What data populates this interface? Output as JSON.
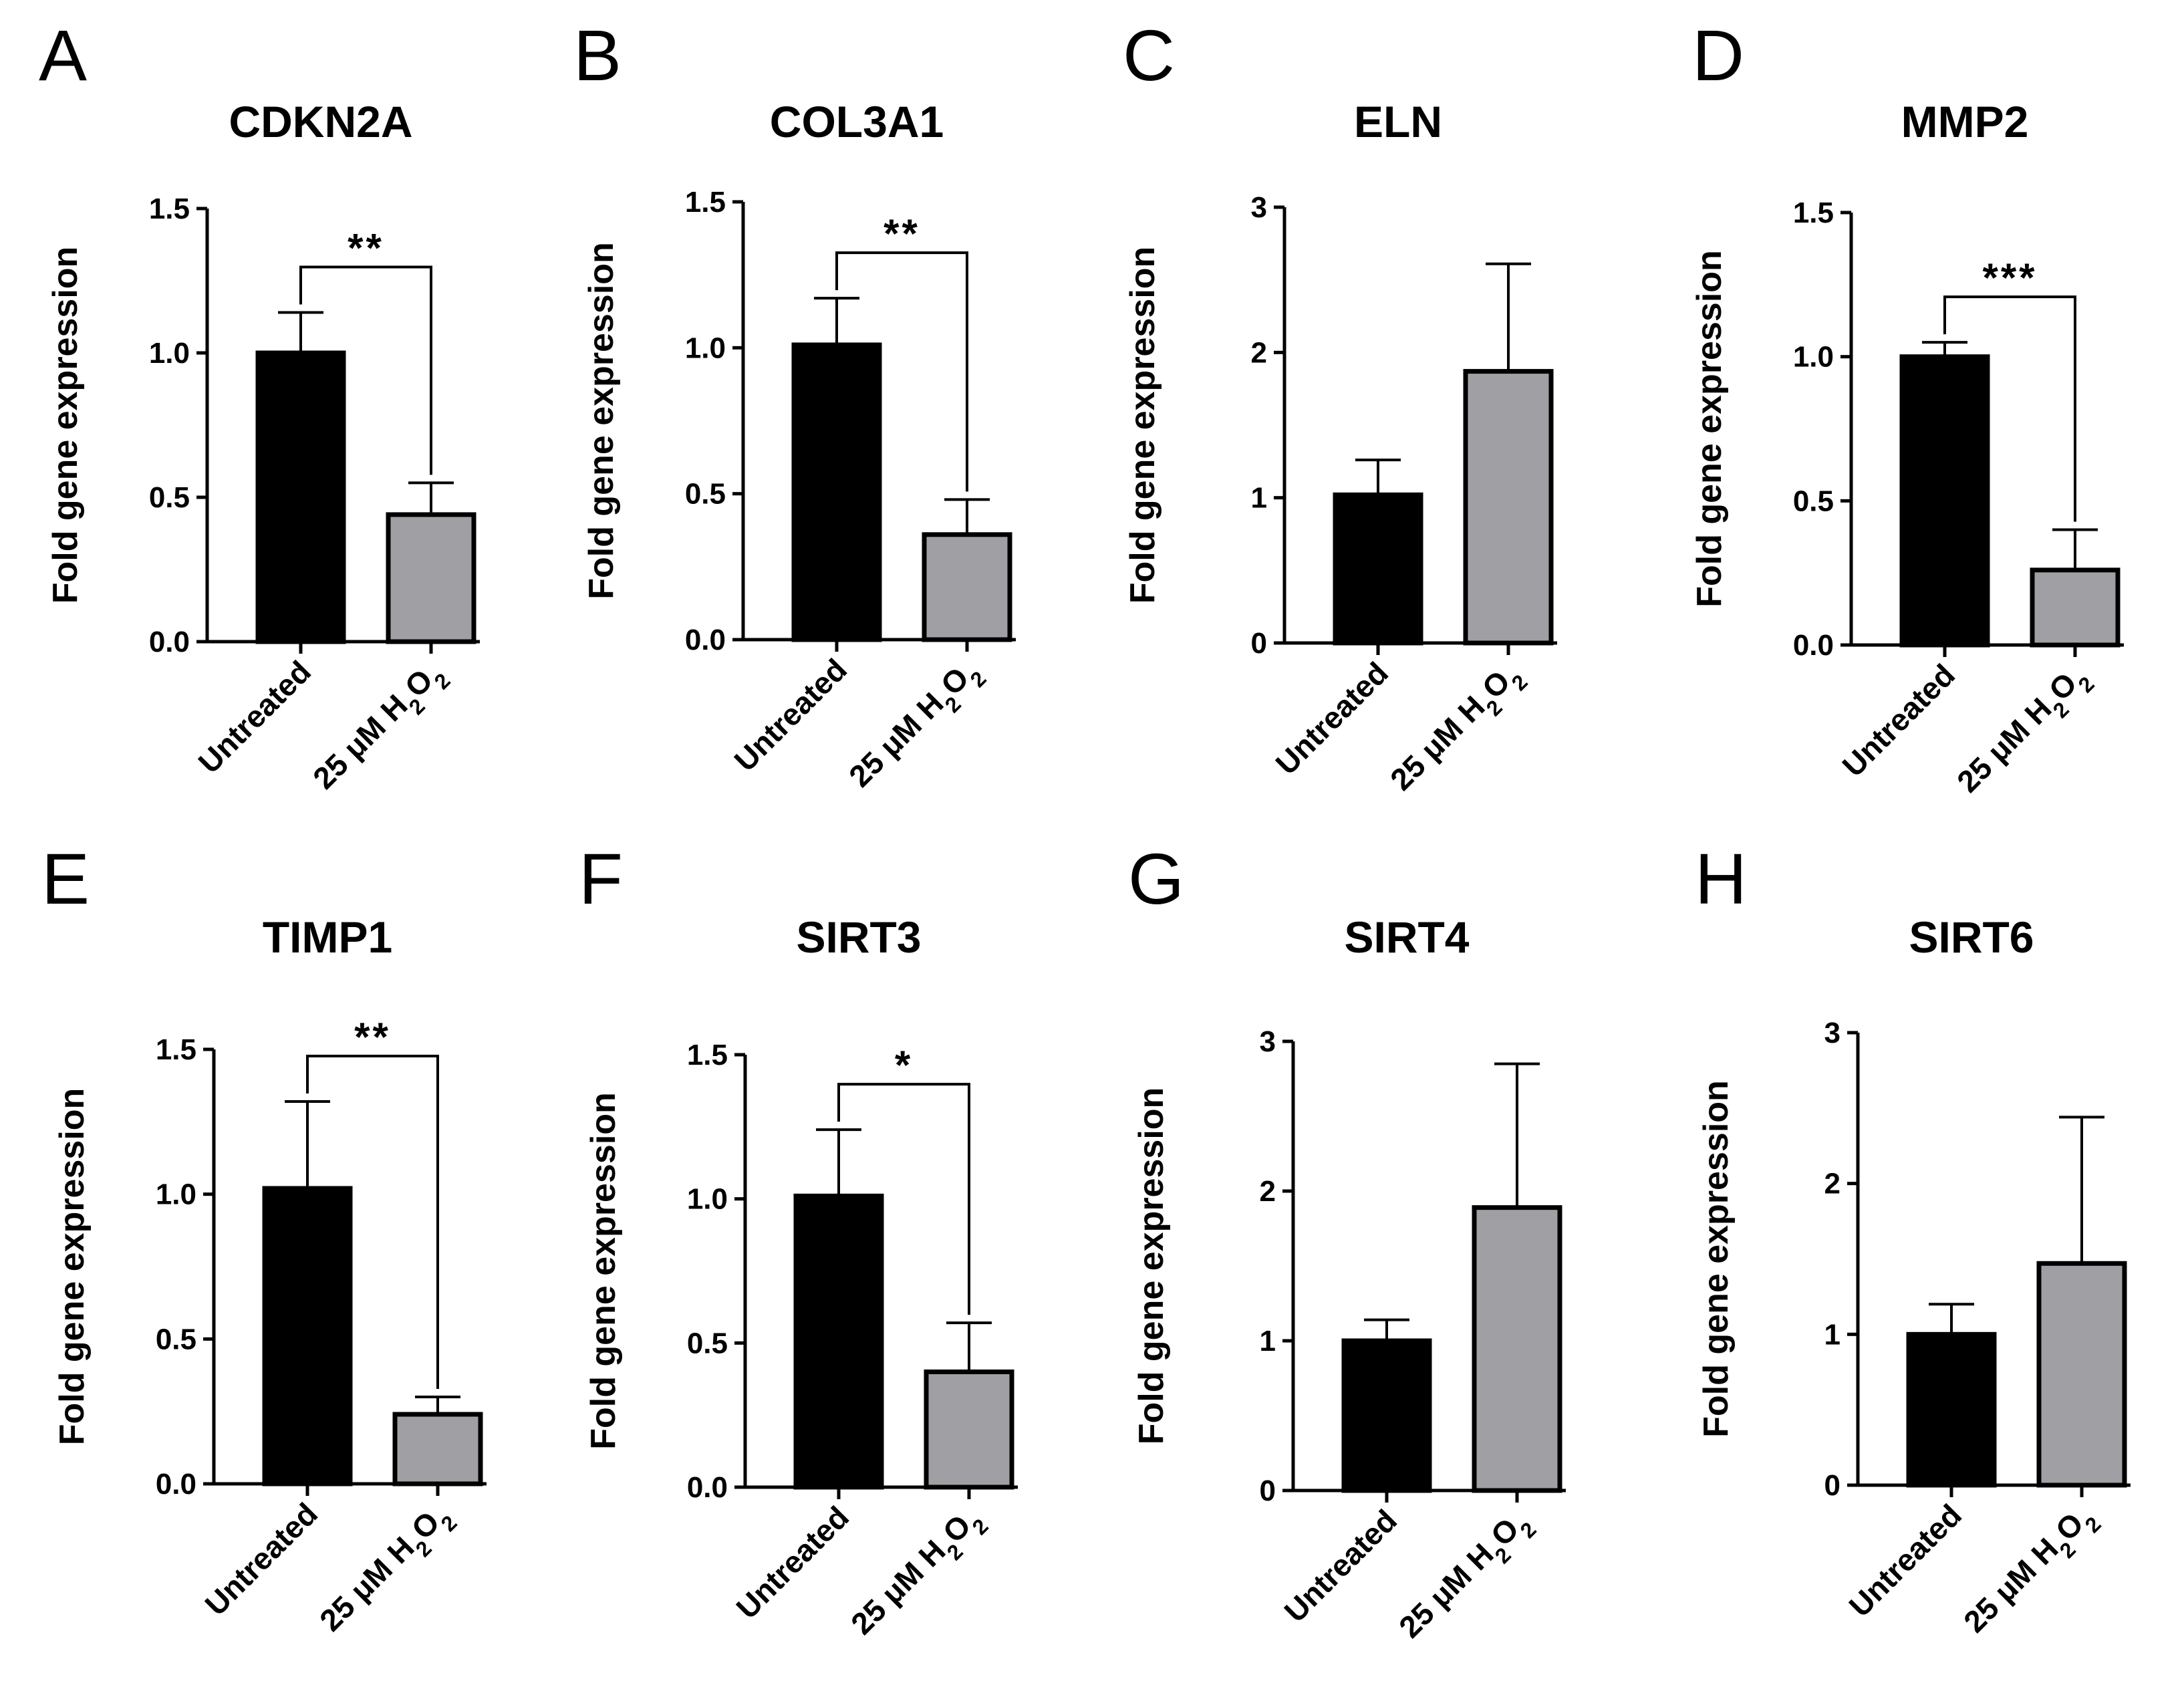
{
  "figure": {
    "layout": "2 rows x 4 panels",
    "background": "#ffffff"
  },
  "chart_data": [
    {
      "letter": "A",
      "type": "bar",
      "title": "CDKN2A",
      "ylabel": "Fold gene expression",
      "categories": [
        "Untreated",
        "25 μM H2O2"
      ],
      "values": [
        1.0,
        0.44
      ],
      "errors": [
        0.14,
        0.11
      ],
      "colors": [
        "#000000",
        "#a0a0a4"
      ],
      "ylim": [
        0,
        1.5
      ],
      "yticks": [
        "0.0",
        "0.5",
        "1.0",
        "1.5"
      ],
      "significance": "**"
    },
    {
      "letter": "B",
      "type": "bar",
      "title": "COL3A1",
      "ylabel": "Fold gene expression",
      "categories": [
        "Untreated",
        "25 μM H2O2"
      ],
      "values": [
        1.01,
        0.36
      ],
      "errors": [
        0.16,
        0.12
      ],
      "colors": [
        "#000000",
        "#a0a0a4"
      ],
      "ylim": [
        0,
        1.5
      ],
      "yticks": [
        "0.0",
        "0.5",
        "1.0",
        "1.5"
      ],
      "significance": "**"
    },
    {
      "letter": "C",
      "type": "bar",
      "title": "ELN",
      "ylabel": "Fold gene expression",
      "categories": [
        "Untreated",
        "25 μM H2O2"
      ],
      "values": [
        1.02,
        1.87
      ],
      "errors": [
        0.24,
        0.74
      ],
      "colors": [
        "#000000",
        "#a0a0a4"
      ],
      "ylim": [
        0,
        3
      ],
      "yticks": [
        "0",
        "1",
        "2",
        "3"
      ],
      "significance": ""
    },
    {
      "letter": "D",
      "type": "bar",
      "title": "MMP2",
      "ylabel": "Fold gene expression",
      "categories": [
        "Untreated",
        "25 μM H2O2"
      ],
      "values": [
        1.0,
        0.26
      ],
      "errors": [
        0.05,
        0.14
      ],
      "colors": [
        "#000000",
        "#a0a0a4"
      ],
      "ylim": [
        0,
        1.5
      ],
      "yticks": [
        "0.0",
        "0.5",
        "1.0",
        "1.5"
      ],
      "significance": "***"
    },
    {
      "letter": "E",
      "type": "bar",
      "title": "TIMP1",
      "ylabel": "Fold gene expression",
      "categories": [
        "Untreated",
        "25 μM H2O2"
      ],
      "values": [
        1.02,
        0.24
      ],
      "errors": [
        0.3,
        0.06
      ],
      "colors": [
        "#000000",
        "#a0a0a4"
      ],
      "ylim": [
        0,
        1.5
      ],
      "yticks": [
        "0.0",
        "0.5",
        "1.0",
        "1.5"
      ],
      "significance": "**"
    },
    {
      "letter": "F",
      "type": "bar",
      "title": "SIRT3",
      "ylabel": "Fold gene expression",
      "categories": [
        "Untreated",
        "25 μM H2O2"
      ],
      "values": [
        1.01,
        0.4
      ],
      "errors": [
        0.23,
        0.17
      ],
      "colors": [
        "#000000",
        "#a0a0a4"
      ],
      "ylim": [
        0,
        1.5
      ],
      "yticks": [
        "0.0",
        "0.5",
        "1.0",
        "1.5"
      ],
      "significance": "*"
    },
    {
      "letter": "G",
      "type": "bar",
      "title": "SIRT4",
      "ylabel": "Fold gene expression",
      "categories": [
        "Untreated",
        "25 μM H2O2"
      ],
      "values": [
        1.0,
        1.89
      ],
      "errors": [
        0.14,
        0.96
      ],
      "colors": [
        "#000000",
        "#a0a0a4"
      ],
      "ylim": [
        0,
        3
      ],
      "yticks": [
        "0",
        "1",
        "2",
        "3"
      ],
      "significance": ""
    },
    {
      "letter": "H",
      "type": "bar",
      "title": "SIRT6",
      "ylabel": "Fold gene expression",
      "categories": [
        "Untreated",
        "25 μM H2O2"
      ],
      "values": [
        1.0,
        1.47
      ],
      "errors": [
        0.2,
        0.97
      ],
      "colors": [
        "#000000",
        "#a0a0a4"
      ],
      "ylim": [
        0,
        3
      ],
      "yticks": [
        "0",
        "1",
        "2",
        "3"
      ],
      "significance": ""
    }
  ]
}
